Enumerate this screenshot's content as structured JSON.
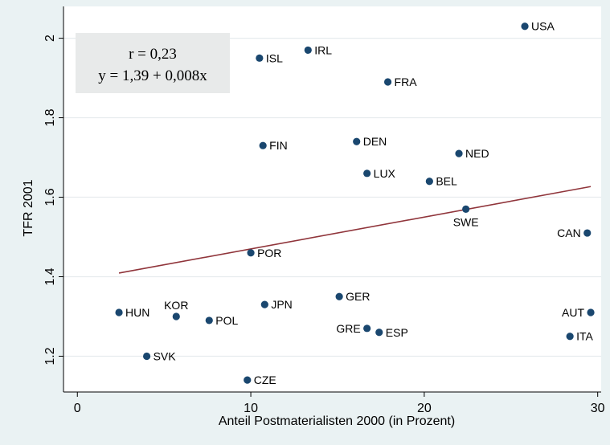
{
  "colors": {
    "background": "#eaf2f3",
    "plot_background": "#ffffff",
    "grid": "#e7ecee",
    "point": "#1a476f",
    "fit_line": "#90353b",
    "stats_box": "#e8eaea",
    "text": "#000000"
  },
  "stats_box": {
    "line1": "r = 0,23",
    "line2": "y = 1,39 + 0,008x"
  },
  "chart_data": {
    "type": "scatter",
    "title": "",
    "xlabel": "Anteil Postmaterialisten 2000 (in Prozent)",
    "ylabel": "TFR 2001",
    "xlim": [
      -0.8,
      30.2
    ],
    "ylim": [
      1.11,
      2.08
    ],
    "xticks": [
      0,
      10,
      20,
      30
    ],
    "xtick_labels": [
      "0",
      "10",
      "20",
      "30"
    ],
    "yticks": [
      1.2,
      1.4,
      1.6,
      1.8,
      2.0
    ],
    "ytick_labels": [
      "1.2",
      "1.4",
      "1.6",
      "1.8",
      "2"
    ],
    "grid": "horizontal",
    "points": [
      {
        "label": "USA",
        "x": 25.8,
        "y": 2.03,
        "label_pos": "right"
      },
      {
        "label": "IRL",
        "x": 13.3,
        "y": 1.97,
        "label_pos": "right"
      },
      {
        "label": "ISL",
        "x": 10.5,
        "y": 1.95,
        "label_pos": "right"
      },
      {
        "label": "FRA",
        "x": 17.9,
        "y": 1.89,
        "label_pos": "right"
      },
      {
        "label": "DEN",
        "x": 16.1,
        "y": 1.74,
        "label_pos": "right"
      },
      {
        "label": "FIN",
        "x": 10.7,
        "y": 1.73,
        "label_pos": "right"
      },
      {
        "label": "NED",
        "x": 22.0,
        "y": 1.71,
        "label_pos": "right"
      },
      {
        "label": "LUX",
        "x": 16.7,
        "y": 1.66,
        "label_pos": "right"
      },
      {
        "label": "BEL",
        "x": 20.3,
        "y": 1.64,
        "label_pos": "right"
      },
      {
        "label": "SWE",
        "x": 22.4,
        "y": 1.57,
        "label_pos": "below"
      },
      {
        "label": "CAN",
        "x": 29.4,
        "y": 1.51,
        "label_pos": "left"
      },
      {
        "label": "POR",
        "x": 10.0,
        "y": 1.46,
        "label_pos": "right"
      },
      {
        "label": "GER",
        "x": 15.1,
        "y": 1.35,
        "label_pos": "right"
      },
      {
        "label": "JPN",
        "x": 10.8,
        "y": 1.33,
        "label_pos": "right"
      },
      {
        "label": "HUN",
        "x": 2.4,
        "y": 1.31,
        "label_pos": "right"
      },
      {
        "label": "AUT",
        "x": 29.6,
        "y": 1.31,
        "label_pos": "left"
      },
      {
        "label": "KOR",
        "x": 5.7,
        "y": 1.3,
        "label_pos": "above"
      },
      {
        "label": "POL",
        "x": 7.6,
        "y": 1.29,
        "label_pos": "right"
      },
      {
        "label": "GRE",
        "x": 16.7,
        "y": 1.27,
        "label_pos": "left"
      },
      {
        "label": "ESP",
        "x": 17.4,
        "y": 1.26,
        "label_pos": "right"
      },
      {
        "label": "ITA",
        "x": 28.4,
        "y": 1.25,
        "label_pos": "right"
      },
      {
        "label": "SVK",
        "x": 4.0,
        "y": 1.2,
        "label_pos": "right"
      },
      {
        "label": "CZE",
        "x": 9.8,
        "y": 1.14,
        "label_pos": "right"
      }
    ],
    "fit_line": {
      "intercept": 1.39,
      "slope": 0.008,
      "x_range": [
        2.4,
        29.6
      ]
    }
  }
}
